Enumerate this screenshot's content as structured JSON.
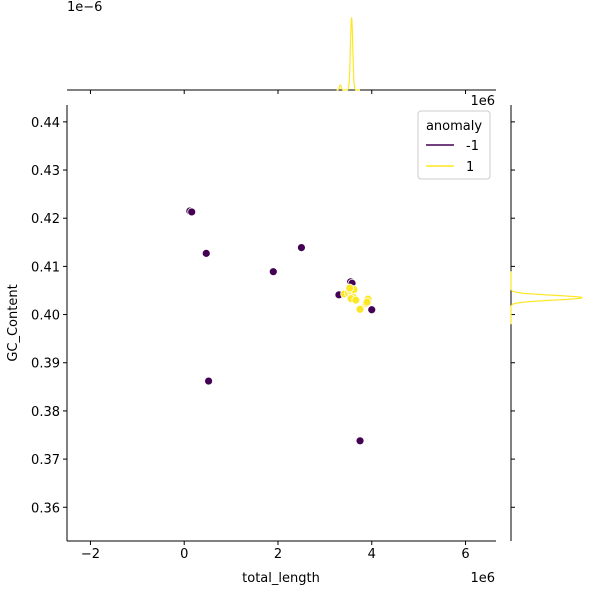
{
  "chart_data": {
    "type": "scatter",
    "xlabel": "total_length",
    "ylabel": "GC_Content",
    "x_scale_label": "1e6",
    "y_scale_label": "1e6",
    "top_scale_label": "1e−6",
    "xlim": [
      -2.5,
      6.65
    ],
    "ylim": [
      0.353,
      0.4435
    ],
    "x_ticks": [
      -2,
      0,
      2,
      4,
      6
    ],
    "x_tick_labels": [
      "−2",
      "0",
      "2",
      "4",
      "6"
    ],
    "y_ticks": [
      0.36,
      0.37,
      0.38,
      0.39,
      0.4,
      0.41,
      0.42,
      0.43,
      0.44
    ],
    "y_tick_labels": [
      "0.36",
      "0.37",
      "0.38",
      "0.39",
      "0.40",
      "0.41",
      "0.42",
      "0.43",
      "0.44"
    ],
    "grid": false,
    "legend": {
      "title": "anomaly",
      "placement": "top-right",
      "entries": [
        {
          "label": "-1",
          "color": "#440154"
        },
        {
          "label": "1",
          "color": "#fde725"
        }
      ]
    },
    "series": [
      {
        "name": "-1",
        "color": "#440154",
        "points": [
          {
            "x": 0.12,
            "y": 0.4215
          },
          {
            "x": 0.16,
            "y": 0.4213
          },
          {
            "x": 0.47,
            "y": 0.4127
          },
          {
            "x": 2.5,
            "y": 0.4139
          },
          {
            "x": 1.9,
            "y": 0.4089
          },
          {
            "x": 3.55,
            "y": 0.4068
          },
          {
            "x": 3.58,
            "y": 0.4065
          },
          {
            "x": 3.3,
            "y": 0.4041
          },
          {
            "x": 4.0,
            "y": 0.401
          },
          {
            "x": 0.52,
            "y": 0.3862
          },
          {
            "x": 3.75,
            "y": 0.3738
          }
        ]
      },
      {
        "name": "1",
        "color": "#fde725",
        "points": [
          {
            "x": 3.42,
            "y": 0.4043
          },
          {
            "x": 3.5,
            "y": 0.4045
          },
          {
            "x": 3.55,
            "y": 0.4048
          },
          {
            "x": 3.58,
            "y": 0.404
          },
          {
            "x": 3.62,
            "y": 0.4052
          },
          {
            "x": 3.6,
            "y": 0.4036
          },
          {
            "x": 3.56,
            "y": 0.4033
          },
          {
            "x": 3.66,
            "y": 0.403
          },
          {
            "x": 3.53,
            "y": 0.4055
          },
          {
            "x": 3.75,
            "y": 0.4011
          },
          {
            "x": 3.88,
            "y": 0.4023
          },
          {
            "x": 3.92,
            "y": 0.4032
          },
          {
            "x": 3.9,
            "y": 0.4026
          }
        ]
      }
    ],
    "marginal_x_density": {
      "color": "#fde725",
      "peaks": [
        {
          "center": 3.57,
          "width": 0.025,
          "height": 1.0
        },
        {
          "center": 3.33,
          "width": 0.02,
          "height": 0.07
        }
      ]
    },
    "marginal_y_density": {
      "color": "#fde725",
      "peaks": [
        {
          "center": 0.4035,
          "width": 0.0005,
          "height": 1.0
        }
      ]
    }
  }
}
